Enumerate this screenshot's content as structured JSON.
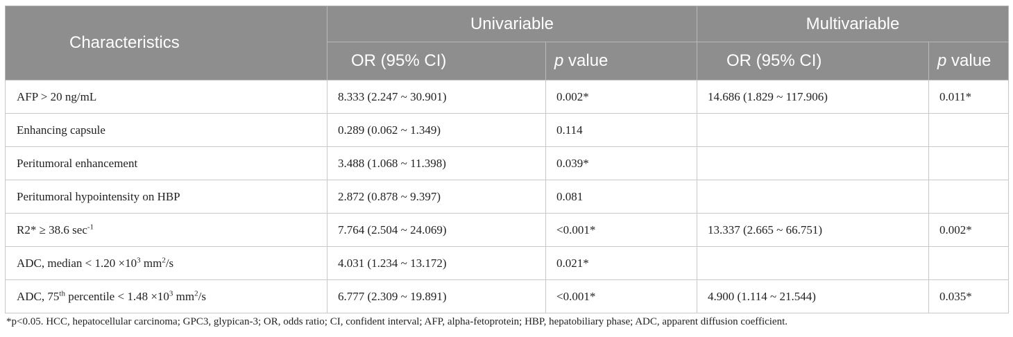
{
  "header": {
    "characteristics": "Characteristics",
    "univariable": "Univariable",
    "multivariable": "Multivariable",
    "or_ci": "OR (95% CI)",
    "p_italic": "p",
    "p_rest": " value"
  },
  "rows": [
    {
      "char_parts": [
        "AFP > 20 ng/mL"
      ],
      "uni_or": "8.333 (2.247 ~ 30.901)",
      "uni_p": "0.002*",
      "multi_or": "14.686 (1.829 ~ 117.906)",
      "multi_p": "0.011*"
    },
    {
      "char_parts": [
        "Enhancing capsule"
      ],
      "uni_or": "0.289 (0.062 ~ 1.349)",
      "uni_p": "0.114",
      "multi_or": "",
      "multi_p": ""
    },
    {
      "char_parts": [
        "Peritumoral enhancement"
      ],
      "uni_or": "3.488 (1.068 ~ 11.398)",
      "uni_p": "0.039*",
      "multi_or": "",
      "multi_p": ""
    },
    {
      "char_parts": [
        "Peritumoral hypointensity on HBP"
      ],
      "uni_or": "2.872 (0.878 ~ 9.397)",
      "uni_p": "0.081",
      "multi_or": "",
      "multi_p": ""
    },
    {
      "char_parts": [
        "R2* ≥ 38.6 sec",
        "-1"
      ],
      "uni_or": "7.764 (2.504 ~ 24.069)",
      "uni_p": "<0.001*",
      "multi_or": "13.337 (2.665 ~ 66.751)",
      "multi_p": "0.002*"
    },
    {
      "char_parts": [
        "ADC, median < 1.20 ×10",
        "3",
        " mm",
        "2",
        "/s"
      ],
      "uni_or": "4.031 (1.234 ~ 13.172)",
      "uni_p": "0.021*",
      "multi_or": "",
      "multi_p": ""
    },
    {
      "char_parts": [
        "ADC, 75",
        "th",
        " percentile < 1.48 ×10",
        "3",
        " mm",
        "2",
        "/s"
      ],
      "uni_or": "6.777 (2.309 ~ 19.891)",
      "uni_p": "<0.001*",
      "multi_or": "4.900 (1.114 ~ 21.544)",
      "multi_p": "0.035*"
    }
  ],
  "footnote": "*p<0.05. HCC, hepatocellular carcinoma; GPC3, glypican-3; OR, odds ratio; CI, confident interval; AFP, alpha-fetoprotein; HBP, hepatobiliary phase; ADC, apparent diffusion coefficient."
}
